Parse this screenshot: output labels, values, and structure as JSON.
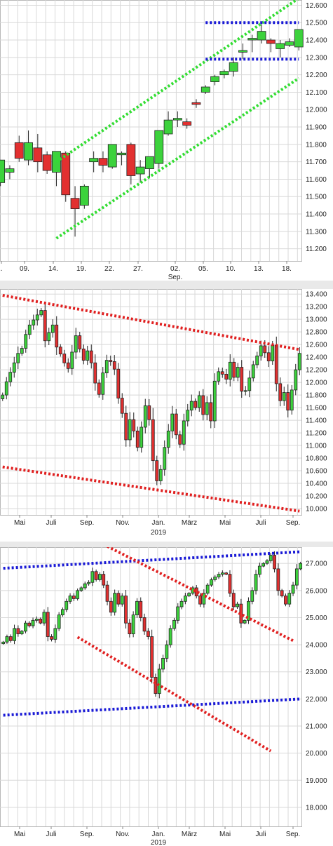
{
  "colors": {
    "up": "#3cd23c",
    "down": "#e23030",
    "wick": "#222222",
    "grid": "#d8d8d8",
    "green_trend": "#33dd33",
    "red_trend": "#e02020",
    "blue_trend": "#1a1ad6"
  },
  "chart_data": [
    {
      "type": "candlestick",
      "title": "",
      "x_tick_labels": [
        ".",
        "09.",
        "14.",
        "19.",
        "22.",
        "27.",
        "02.",
        "05.",
        "10.",
        "13.",
        "18."
      ],
      "x_sub_labels": [
        {
          "below": "02.",
          "text": "Sep."
        }
      ],
      "y_tick_labels": [
        "11.200",
        "11.300",
        "11.400",
        "11.500",
        "11.600",
        "11.700",
        "11.800",
        "11.900",
        "12.000",
        "12.100",
        "12.200",
        "12.300",
        "12.400",
        "12.500",
        "12.600"
      ],
      "ylim": [
        11130,
        12630
      ],
      "candles": [
        [
          11580,
          11710,
          11560,
          11710
        ],
        [
          11640,
          11680,
          11600,
          11660
        ],
        [
          11810,
          11850,
          11700,
          11720
        ],
        [
          11710,
          11880,
          11680,
          11810
        ],
        [
          11780,
          11860,
          11640,
          11700
        ],
        [
          11740,
          11760,
          11630,
          11650
        ],
        [
          11640,
          11760,
          11560,
          11760
        ],
        [
          11750,
          11760,
          11470,
          11510
        ],
        [
          11490,
          11560,
          11270,
          11430
        ],
        [
          11450,
          11570,
          11430,
          11560
        ],
        [
          11700,
          11760,
          11640,
          11720
        ],
        [
          11720,
          11760,
          11640,
          11680
        ],
        [
          11670,
          11800,
          11660,
          11800
        ],
        [
          11740,
          11760,
          11680,
          11750
        ],
        [
          11800,
          11810,
          11570,
          11620
        ],
        [
          11630,
          11710,
          11580,
          11670
        ],
        [
          11660,
          11730,
          11610,
          11730
        ],
        [
          11690,
          11880,
          11660,
          11880
        ],
        [
          11860,
          11990,
          11850,
          11940
        ],
        [
          11940,
          11990,
          11900,
          11950
        ],
        [
          11930,
          11950,
          11890,
          11910
        ],
        [
          12040,
          12060,
          12010,
          12030
        ],
        [
          12100,
          12140,
          12090,
          12130
        ],
        [
          12160,
          12200,
          12140,
          12190
        ],
        [
          12200,
          12230,
          12180,
          12220
        ],
        [
          12220,
          12300,
          12190,
          12270
        ],
        [
          12330,
          12380,
          12290,
          12340
        ],
        [
          12400,
          12430,
          12330,
          12410
        ],
        [
          12400,
          12490,
          12380,
          12450
        ],
        [
          12400,
          12410,
          12330,
          12380
        ],
        [
          12350,
          12400,
          12300,
          12380
        ],
        [
          12370,
          12410,
          12360,
          12390
        ],
        [
          12360,
          12460,
          12340,
          12460
        ]
      ],
      "trendlines": [
        {
          "color": "green_trend",
          "points": [
            [
              6,
              11700
            ],
            [
              32,
              12640
            ]
          ]
        },
        {
          "color": "green_trend",
          "points": [
            [
              6,
              11260
            ],
            [
              32,
              12180
            ]
          ]
        },
        {
          "color": "blue_trend",
          "points": [
            [
              22,
              12500
            ],
            [
              32,
              12500
            ]
          ]
        },
        {
          "color": "blue_trend",
          "points": [
            [
              22,
              12290
            ],
            [
              32,
              12290
            ]
          ]
        }
      ]
    },
    {
      "type": "candlestick",
      "title": "",
      "x_tick_labels": [
        "Mai",
        "Juli",
        "Sep.",
        "Nov.",
        "Jan.",
        "März",
        "Mai",
        "Juli",
        "Sep."
      ],
      "x_sub_labels": [
        {
          "below": "Jan.",
          "text": "2019"
        }
      ],
      "y_tick_labels": [
        "10.000",
        "10.200",
        "10.400",
        "10.600",
        "10.800",
        "11.000",
        "11.200",
        "11.400",
        "11.600",
        "11.800",
        "12.000",
        "12.200",
        "12.400",
        "12.600",
        "12.800",
        "13.000",
        "13.200",
        "13.400"
      ],
      "ylim": [
        9900,
        13480
      ],
      "closes": [
        11800,
        12010,
        12160,
        12310,
        12460,
        12540,
        12760,
        12910,
        12990,
        13070,
        13140,
        12660,
        12790,
        12910,
        12560,
        12450,
        12310,
        12220,
        12480,
        12740,
        12530,
        12350,
        12500,
        12310,
        11990,
        11810,
        12150,
        12350,
        12330,
        12210,
        11750,
        11510,
        11090,
        11410,
        11230,
        10970,
        11290,
        11630,
        11410,
        10760,
        10440,
        10620,
        10970,
        11230,
        11500,
        11170,
        11020,
        11390,
        11560,
        11700,
        11600,
        11790,
        11490,
        11680,
        11390,
        12020,
        12170,
        12130,
        12050,
        12320,
        12080,
        12240,
        11860,
        11870,
        12070,
        12280,
        12420,
        12580,
        12470,
        12340,
        12590,
        11980,
        11710,
        11840,
        11560,
        11880,
        12200,
        12460
      ],
      "trendlines": [
        {
          "color": "red_trend",
          "points": [
            [
              0,
              13380
            ],
            [
              77,
              12520
            ]
          ]
        },
        {
          "color": "red_trend",
          "points": [
            [
              0,
              10660
            ],
            [
              77,
              9960
            ]
          ]
        }
      ]
    },
    {
      "type": "candlestick",
      "title": "",
      "x_tick_labels": [
        "Mai",
        "Juli",
        "Sep.",
        "Nov.",
        "Jan.",
        "März",
        "Mai",
        "Juli",
        "Sep."
      ],
      "x_sub_labels": [
        {
          "below": "Jan.",
          "text": "2019"
        }
      ],
      "y_tick_labels": [
        "18.000",
        "19.000",
        "20.000",
        "21.000",
        "22.000",
        "23.000",
        "24.000",
        "25.000",
        "26.000",
        "27.000"
      ],
      "ylim": [
        17300,
        27600
      ],
      "closes": [
        24100,
        24300,
        24150,
        24600,
        24400,
        24500,
        24800,
        24700,
        24900,
        24950,
        24800,
        25200,
        24300,
        24200,
        24600,
        25100,
        25300,
        25600,
        25800,
        25700,
        26000,
        26100,
        26250,
        26300,
        26700,
        26400,
        26600,
        26200,
        25600,
        25200,
        25900,
        25500,
        25800,
        24800,
        24400,
        25100,
        25600,
        25000,
        24500,
        24300,
        22800,
        22200,
        23100,
        23500,
        24000,
        24600,
        24900,
        25400,
        25600,
        25800,
        25900,
        26100,
        25800,
        25500,
        25900,
        26200,
        26400,
        26500,
        26600,
        26650,
        26600,
        25900,
        25400,
        25500,
        24800,
        24900,
        25600,
        26000,
        26600,
        26900,
        27000,
        27100,
        27300,
        26800,
        26000,
        25800,
        25500,
        25900,
        26200,
        26800,
        27000
      ],
      "trendlines": [
        {
          "color": "blue_trend",
          "points": [
            [
              0,
              26820
            ],
            [
              80,
              27430
            ]
          ]
        },
        {
          "color": "blue_trend",
          "points": [
            [
              0,
              21400
            ],
            [
              80,
              22000
            ]
          ]
        },
        {
          "color": "red_trend",
          "points": [
            [
              27,
              27700
            ],
            [
              78,
              24150
            ]
          ]
        },
        {
          "color": "red_trend",
          "points": [
            [
              20,
              24280
            ],
            [
              72,
              20080
            ]
          ]
        }
      ]
    }
  ]
}
